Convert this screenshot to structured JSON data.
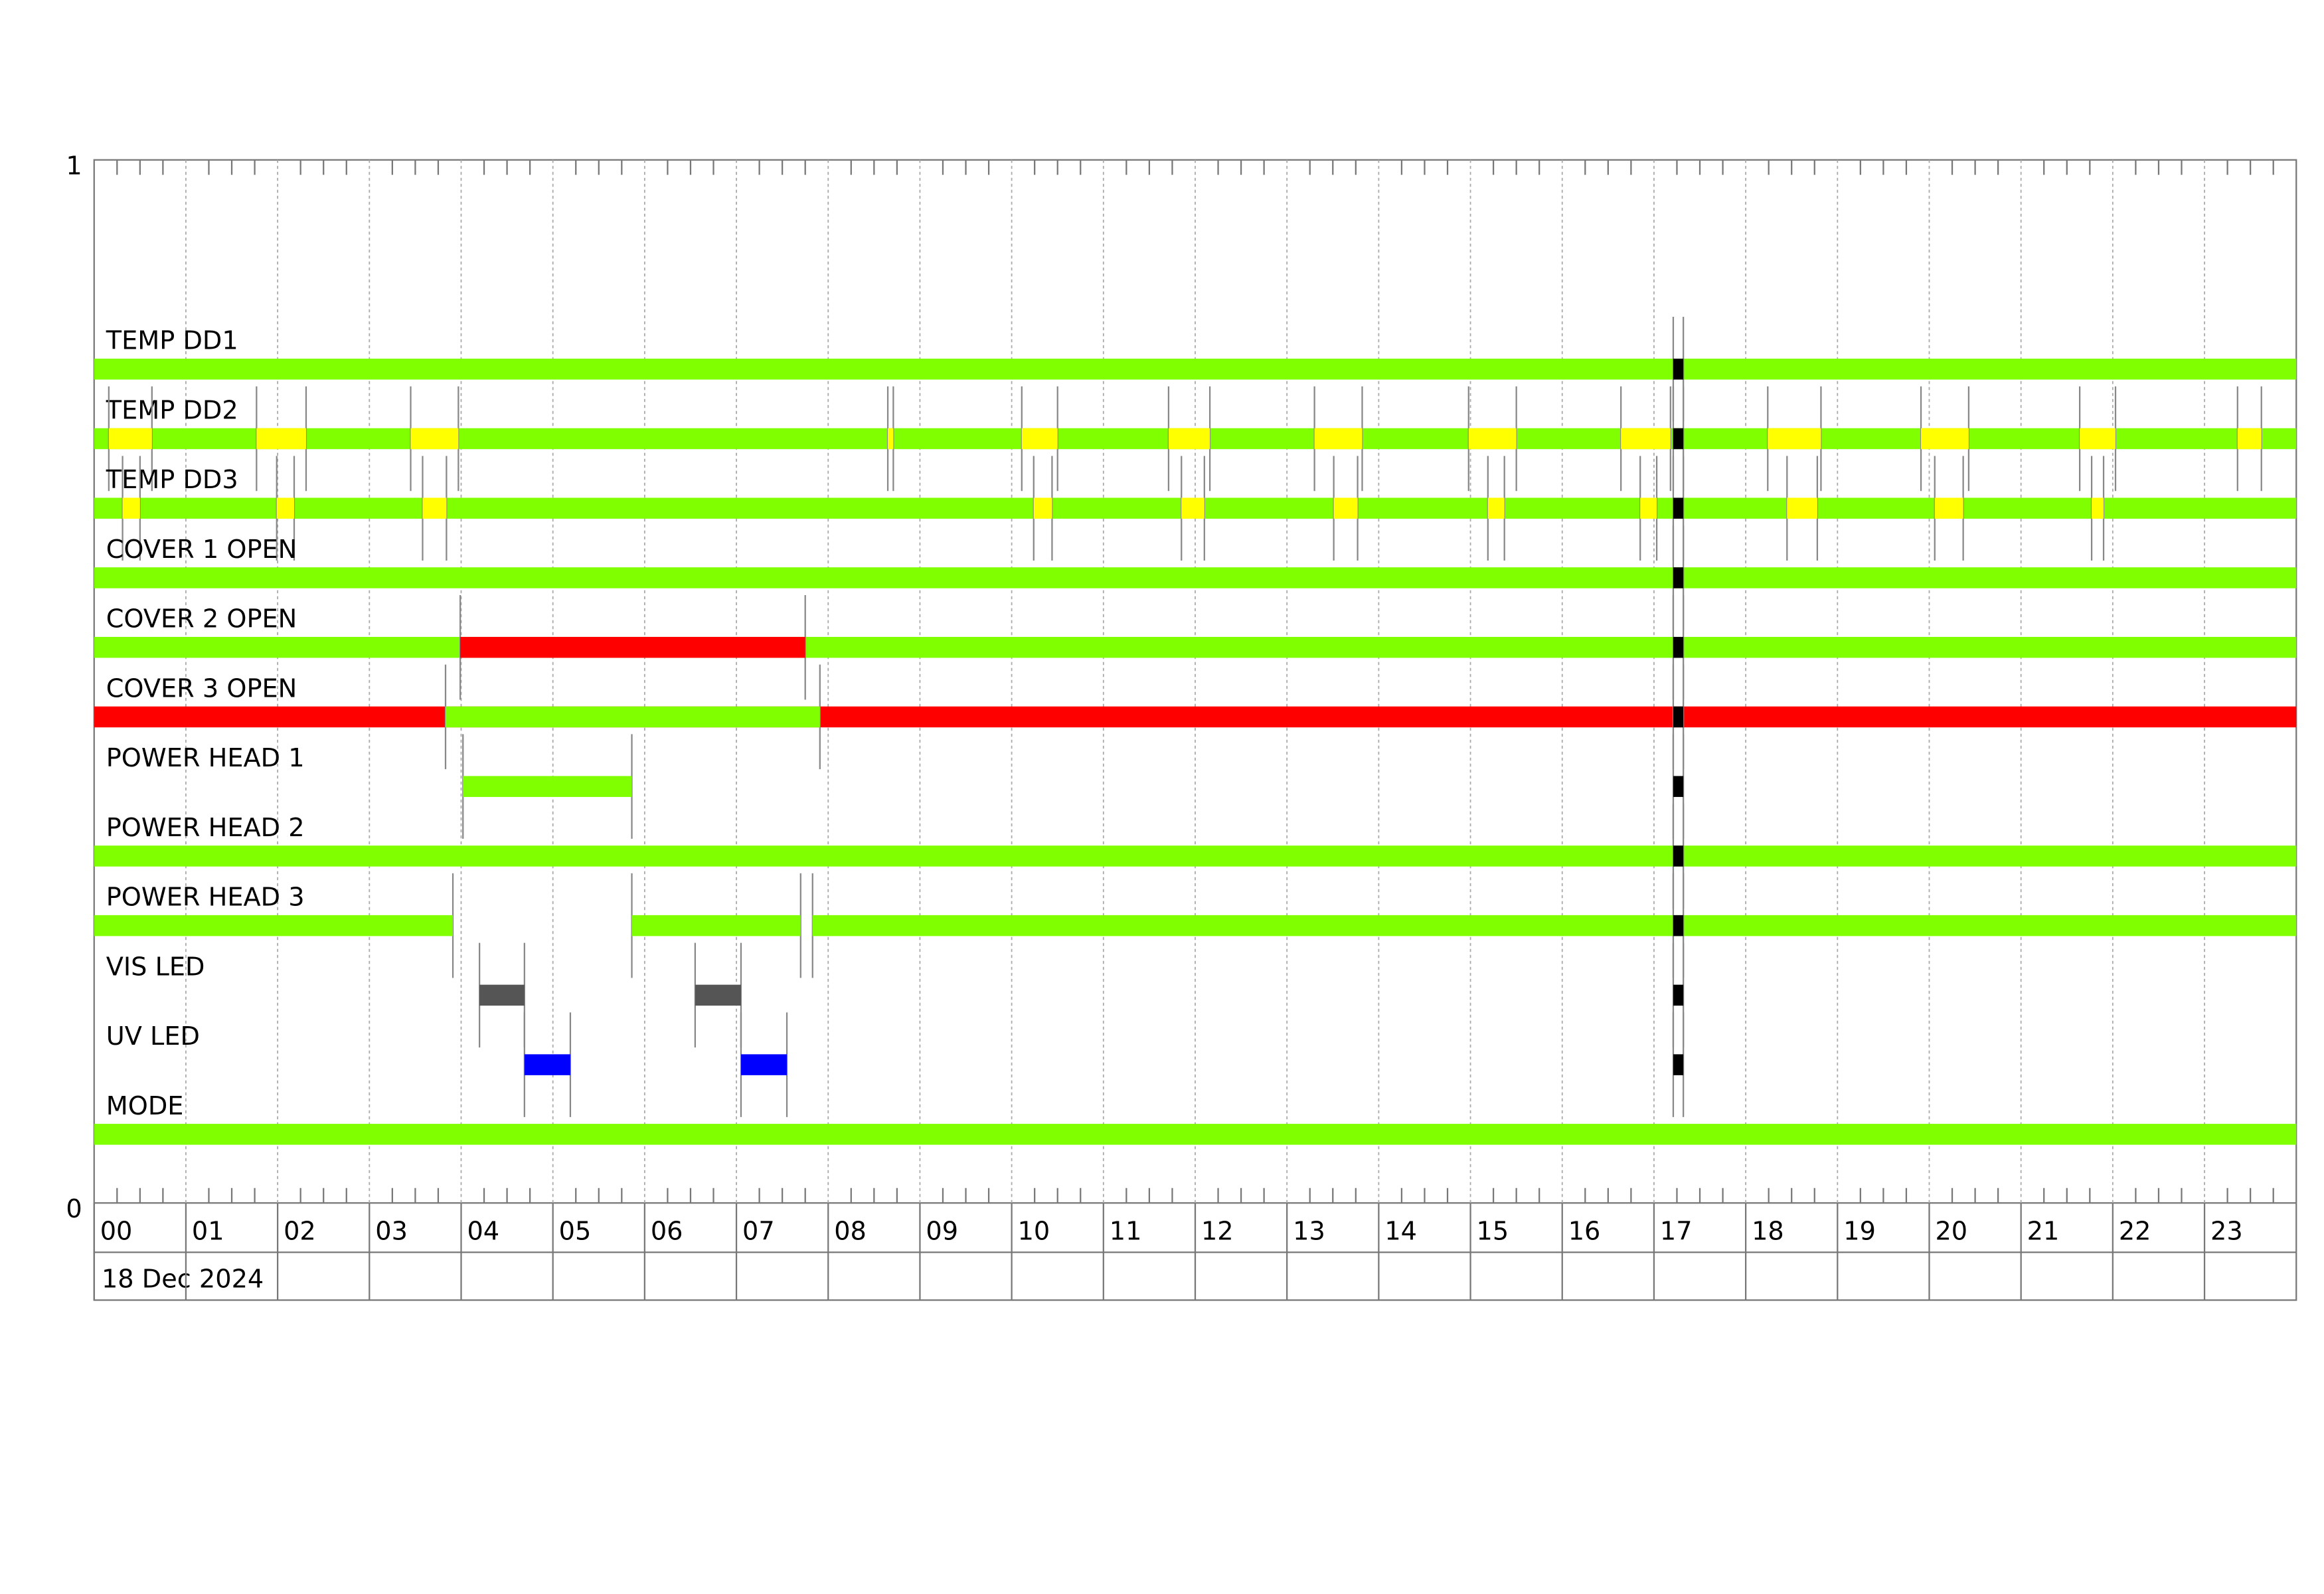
{
  "chart_data": {
    "type": "timeline",
    "xlim": [
      0,
      24
    ],
    "xticks": [
      {
        "value": 0,
        "label": "00"
      },
      {
        "value": 1,
        "label": "01"
      },
      {
        "value": 2,
        "label": "02"
      },
      {
        "value": 3,
        "label": "03"
      },
      {
        "value": 4,
        "label": "04"
      },
      {
        "value": 5,
        "label": "05"
      },
      {
        "value": 6,
        "label": "06"
      },
      {
        "value": 7,
        "label": "07"
      },
      {
        "value": 8,
        "label": "08"
      },
      {
        "value": 9,
        "label": "09"
      },
      {
        "value": 10,
        "label": "10"
      },
      {
        "value": 11,
        "label": "11"
      },
      {
        "value": 12,
        "label": "12"
      },
      {
        "value": 13,
        "label": "13"
      },
      {
        "value": 14,
        "label": "14"
      },
      {
        "value": 15,
        "label": "15"
      },
      {
        "value": 16,
        "label": "16"
      },
      {
        "value": 17,
        "label": "17"
      },
      {
        "value": 18,
        "label": "18"
      },
      {
        "value": 19,
        "label": "19"
      },
      {
        "value": 20,
        "label": "20"
      },
      {
        "value": 21,
        "label": "21"
      },
      {
        "value": 22,
        "label": "22"
      },
      {
        "value": 23,
        "label": "23"
      }
    ],
    "ylim": [
      0,
      1
    ],
    "yticks": [
      0,
      1
    ],
    "date": "18 Dec 2024",
    "grid": true,
    "rows": [
      {
        "label": "TEMP DD1",
        "segments": [
          {
            "start": 0,
            "end": 24,
            "color": "#7fff00"
          },
          {
            "start": 17.21,
            "end": 17.32,
            "color": "#000000"
          }
        ]
      },
      {
        "label": "TEMP DD2",
        "segments": [
          {
            "start": 0,
            "end": 24,
            "color": "#7fff00"
          },
          {
            "start": 0.16,
            "end": 0.63,
            "color": "#ffff00"
          },
          {
            "start": 1.77,
            "end": 2.31,
            "color": "#ffff00"
          },
          {
            "start": 3.45,
            "end": 3.97,
            "color": "#ffff00"
          },
          {
            "start": 8.65,
            "end": 8.71,
            "color": "#ffff00"
          },
          {
            "start": 10.11,
            "end": 10.5,
            "color": "#ffff00"
          },
          {
            "start": 11.71,
            "end": 12.16,
            "color": "#ffff00"
          },
          {
            "start": 13.3,
            "end": 13.82,
            "color": "#ffff00"
          },
          {
            "start": 14.98,
            "end": 15.5,
            "color": "#ffff00"
          },
          {
            "start": 16.64,
            "end": 17.18,
            "color": "#ffff00"
          },
          {
            "start": 17.21,
            "end": 17.32,
            "color": "#000000"
          },
          {
            "start": 18.24,
            "end": 18.82,
            "color": "#ffff00"
          },
          {
            "start": 19.91,
            "end": 20.43,
            "color": "#ffff00"
          },
          {
            "start": 21.64,
            "end": 22.03,
            "color": "#ffff00"
          },
          {
            "start": 23.36,
            "end": 23.62,
            "color": "#ffff00"
          }
        ]
      },
      {
        "label": "TEMP DD3",
        "segments": [
          {
            "start": 0,
            "end": 24,
            "color": "#7fff00"
          },
          {
            "start": 0.31,
            "end": 0.5,
            "color": "#ffff00"
          },
          {
            "start": 1.99,
            "end": 2.18,
            "color": "#ffff00"
          },
          {
            "start": 3.58,
            "end": 3.84,
            "color": "#ffff00"
          },
          {
            "start": 10.24,
            "end": 10.44,
            "color": "#ffff00"
          },
          {
            "start": 11.85,
            "end": 12.1,
            "color": "#ffff00"
          },
          {
            "start": 13.51,
            "end": 13.77,
            "color": "#ffff00"
          },
          {
            "start": 15.19,
            "end": 15.37,
            "color": "#ffff00"
          },
          {
            "start": 16.85,
            "end": 17.03,
            "color": "#ffff00"
          },
          {
            "start": 17.21,
            "end": 17.32,
            "color": "#000000"
          },
          {
            "start": 18.45,
            "end": 18.78,
            "color": "#ffff00"
          },
          {
            "start": 20.06,
            "end": 20.37,
            "color": "#ffff00"
          },
          {
            "start": 21.77,
            "end": 21.9,
            "color": "#ffff00"
          }
        ]
      },
      {
        "label": "COVER 1 OPEN",
        "segments": [
          {
            "start": 0,
            "end": 24,
            "color": "#7fff00"
          },
          {
            "start": 17.21,
            "end": 17.32,
            "color": "#000000"
          }
        ]
      },
      {
        "label": "COVER 2 OPEN",
        "segments": [
          {
            "start": 0,
            "end": 24,
            "color": "#7fff00"
          },
          {
            "start": 3.99,
            "end": 7.75,
            "color": "#ff0000"
          },
          {
            "start": 17.21,
            "end": 17.32,
            "color": "#000000"
          }
        ]
      },
      {
        "label": "COVER 3 OPEN",
        "segments": [
          {
            "start": 0,
            "end": 24,
            "color": "#ff0000"
          },
          {
            "start": 3.83,
            "end": 7.91,
            "color": "#7fff00"
          },
          {
            "start": 17.21,
            "end": 17.32,
            "color": "#000000"
          }
        ]
      },
      {
        "label": "POWER HEAD 1",
        "segments": [
          {
            "start": 4.02,
            "end": 5.86,
            "color": "#7fff00"
          },
          {
            "start": 17.21,
            "end": 17.32,
            "color": "#000000"
          }
        ]
      },
      {
        "label": "POWER HEAD 2",
        "segments": [
          {
            "start": 0,
            "end": 24,
            "color": "#7fff00"
          },
          {
            "start": 17.21,
            "end": 17.32,
            "color": "#000000"
          }
        ]
      },
      {
        "label": "POWER HEAD 3",
        "segments": [
          {
            "start": 0,
            "end": 3.91,
            "color": "#7fff00"
          },
          {
            "start": 5.86,
            "end": 7.7,
            "color": "#7fff00"
          },
          {
            "start": 7.83,
            "end": 24,
            "color": "#7fff00"
          },
          {
            "start": 17.21,
            "end": 17.32,
            "color": "#000000"
          }
        ]
      },
      {
        "label": "VIS LED",
        "segments": [
          {
            "start": 4.2,
            "end": 4.69,
            "color": "#555555"
          },
          {
            "start": 6.55,
            "end": 7.05,
            "color": "#555555"
          },
          {
            "start": 17.21,
            "end": 17.32,
            "color": "#000000"
          }
        ]
      },
      {
        "label": "UV LED",
        "segments": [
          {
            "start": 4.69,
            "end": 5.19,
            "color": "#0000ff"
          },
          {
            "start": 7.05,
            "end": 7.55,
            "color": "#0000ff"
          },
          {
            "start": 17.21,
            "end": 17.32,
            "color": "#000000"
          }
        ]
      },
      {
        "label": "MODE",
        "segments": [
          {
            "start": 0,
            "end": 24,
            "color": "#7fff00"
          }
        ]
      }
    ]
  }
}
